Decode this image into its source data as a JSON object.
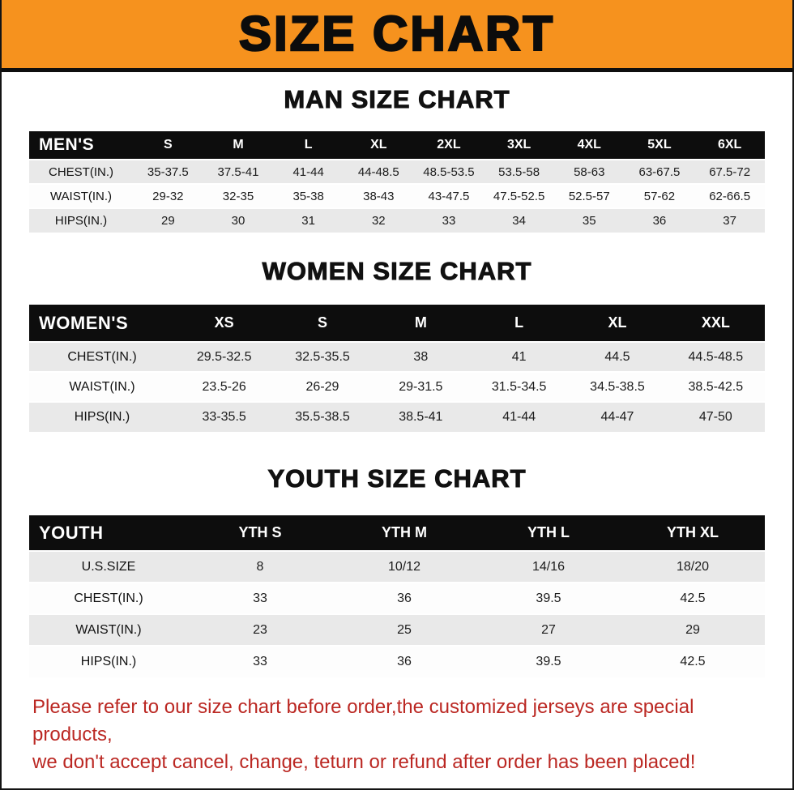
{
  "colors": {
    "banner-bg": "#f6921e",
    "banner-text": "#0c0c0c",
    "table-header-bg": "#0d0d0d",
    "table-header-text": "#ffffff",
    "row-stripe": "#e9e9e9",
    "footer-text": "#bb2823"
  },
  "banner": {
    "title": "SIZE CHART"
  },
  "sections": [
    {
      "heading": "MAN SIZE CHART",
      "table": {
        "name": "mens-size-table",
        "header": [
          "MEN'S",
          "S",
          "M",
          "L",
          "XL",
          "2XL",
          "3XL",
          "4XL",
          "5XL",
          "6XL"
        ],
        "rows": [
          [
            "CHEST(IN.)",
            "35-37.5",
            "37.5-41",
            "41-44",
            "44-48.5",
            "48.5-53.5",
            "53.5-58",
            "58-63",
            "63-67.5",
            "67.5-72"
          ],
          [
            "WAIST(IN.)",
            "29-32",
            "32-35",
            "35-38",
            "38-43",
            "43-47.5",
            "47.5-52.5",
            "52.5-57",
            "57-62",
            "62-66.5"
          ],
          [
            "HIPS(IN.)",
            "29",
            "30",
            "31",
            "32",
            "33",
            "34",
            "35",
            "36",
            "37"
          ]
        ]
      }
    },
    {
      "heading": "WOMEN SIZE CHART",
      "table": {
        "name": "womens-size-table",
        "header": [
          "WOMEN'S",
          "XS",
          "S",
          "M",
          "L",
          "XL",
          "XXL"
        ],
        "rows": [
          [
            "CHEST(IN.)",
            "29.5-32.5",
            "32.5-35.5",
            "38",
            "41",
            "44.5",
            "44.5-48.5"
          ],
          [
            "WAIST(IN.)",
            "23.5-26",
            "26-29",
            "29-31.5",
            "31.5-34.5",
            "34.5-38.5",
            "38.5-42.5"
          ],
          [
            "HIPS(IN.)",
            "33-35.5",
            "35.5-38.5",
            "38.5-41",
            "41-44",
            "44-47",
            "47-50"
          ]
        ]
      }
    },
    {
      "heading": "YOUTH SIZE CHART",
      "table": {
        "name": "youth-size-table",
        "header": [
          "YOUTH",
          "YTH S",
          "YTH M",
          "YTH L",
          "YTH XL"
        ],
        "rows": [
          [
            "U.S.SIZE",
            "8",
            "10/12",
            "14/16",
            "18/20"
          ],
          [
            "CHEST(IN.)",
            "33",
            "36",
            "39.5",
            "42.5"
          ],
          [
            "WAIST(IN.)",
            "23",
            "25",
            "27",
            "29"
          ],
          [
            "HIPS(IN.)",
            "33",
            "36",
            "39.5",
            "42.5"
          ]
        ]
      }
    }
  ],
  "footer": {
    "lines": [
      "Please refer to our size chart before order,the customized jerseys are special products,",
      "we don't accept cancel, change, teturn or refund after order has been placed!"
    ]
  }
}
